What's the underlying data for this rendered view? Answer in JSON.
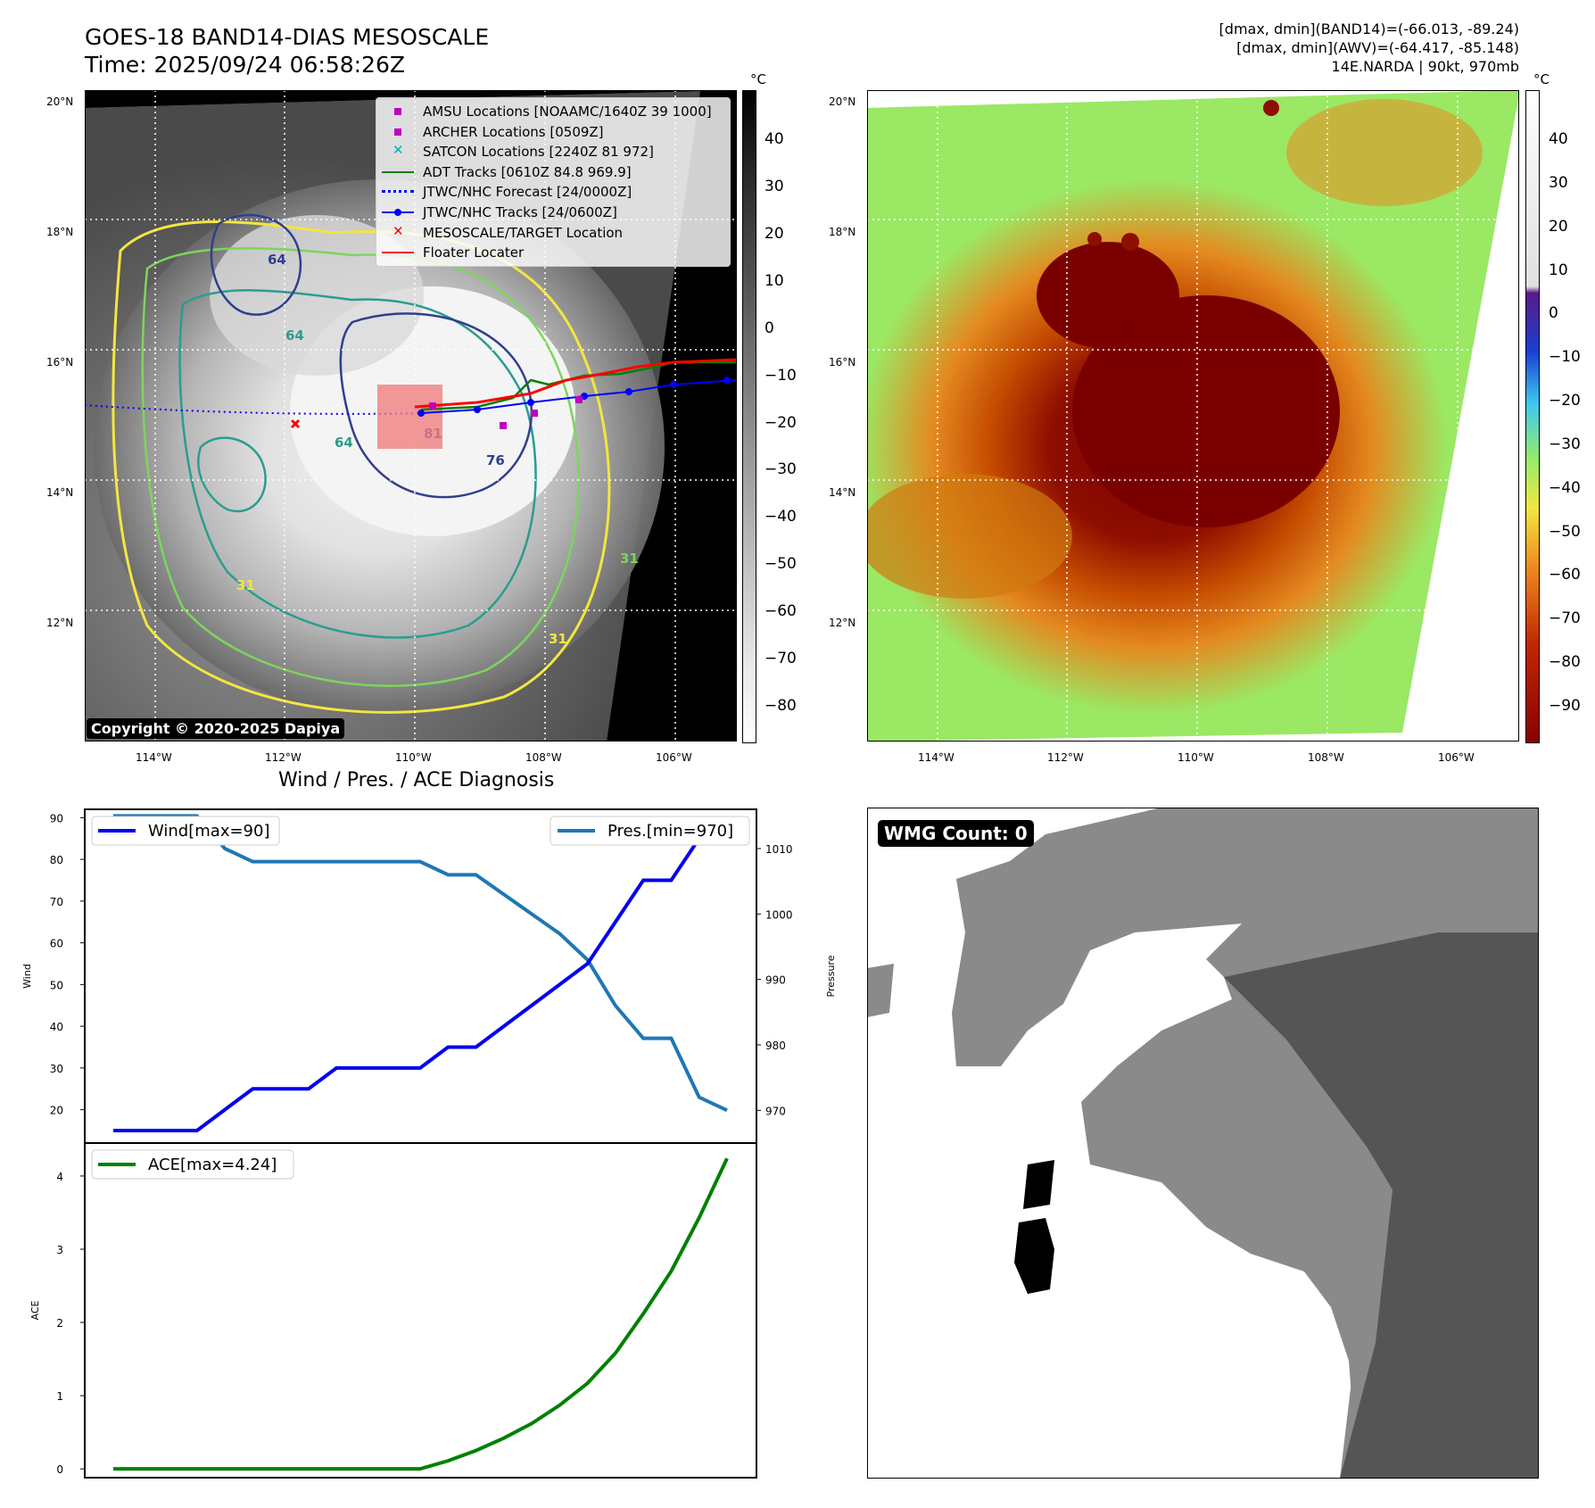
{
  "header": {
    "title_line1": "GOES-18 BAND14-DIAS MESOSCALE",
    "title_line2": "Time: 2025/09/24 06:58:26Z",
    "info_line1": "[dmax, dmin](BAND14)=(-66.013, -89.24)",
    "info_line2": "[dmax, dmin](AWV)=(-64.417, -85.148)",
    "info_line3": "14E.NARDA | 90kt, 970mb"
  },
  "maps": {
    "lat_ticks": [
      "20°N",
      "18°N",
      "16°N",
      "14°N",
      "12°N"
    ],
    "lon_ticks": [
      "114°W",
      "112°W",
      "110°W",
      "108°W",
      "106°W"
    ],
    "unit": "°C",
    "left_colorbar_ticks": [
      "40",
      "30",
      "20",
      "10",
      "0",
      "−10",
      "−20",
      "−30",
      "−40",
      "−50",
      "−60",
      "−70",
      "−80"
    ],
    "right_colorbar_ticks": [
      "40",
      "30",
      "20",
      "10",
      "0",
      "−10",
      "−20",
      "−30",
      "−40",
      "−50",
      "−60",
      "−70",
      "−80",
      "−90"
    ],
    "copyright": "Copyright © 2020-2025 Dapiya",
    "contour_labels": [
      "64",
      "64",
      "81",
      "76",
      "64",
      "31",
      "31",
      "31"
    ],
    "legend": [
      {
        "label": "AMSU Locations [NOAAMC/1640Z 39 1000]",
        "color": "#c000c0",
        "marker": "square"
      },
      {
        "label": "ARCHER Locations [0509Z]",
        "color": "#c000c0",
        "marker": "square"
      },
      {
        "label": "SATCON Locations [2240Z 81 972]",
        "color": "#00b0b0",
        "marker": "x"
      },
      {
        "label": "ADT Tracks [0610Z 84.8 969.9]",
        "color": "#008000",
        "marker": "line"
      },
      {
        "label": "JTWC/NHC Forecast [24/0000Z]",
        "color": "#0000ff",
        "marker": "dotted"
      },
      {
        "label": "JTWC/NHC Tracks [24/0600Z]",
        "color": "#0000ff",
        "marker": "line-dot"
      },
      {
        "label": "MESOSCALE/TARGET Location",
        "color": "#ff0000",
        "marker": "x"
      },
      {
        "label": "Floater Locater",
        "color": "#ff0000",
        "marker": "line"
      }
    ]
  },
  "wmg": {
    "label": "WMG Count: 0"
  },
  "diagnosis": {
    "title": "Wind / Pres. / ACE Diagnosis"
  },
  "chart_data": [
    {
      "type": "line",
      "title": "Wind / Pres. / ACE Diagnosis",
      "ylabel": "Wind",
      "y2label": "Pressure",
      "ylim": [
        12,
        92
      ],
      "y2lim": [
        965,
        1016
      ],
      "yticks": [
        20,
        30,
        40,
        50,
        60,
        70,
        80,
        90
      ],
      "y2ticks": [
        970,
        980,
        990,
        1000,
        1010
      ],
      "series": [
        {
          "name": "Wind[max=90]",
          "axis": "left",
          "color": "#0000ee",
          "values": [
            15,
            15,
            15,
            15,
            20,
            25,
            25,
            25,
            30,
            30,
            30,
            30,
            35,
            35,
            40,
            45,
            50,
            55,
            65,
            75,
            75,
            85,
            90
          ]
        },
        {
          "name": "Pres.[min=970]",
          "axis": "right",
          "color": "#1f77b4",
          "values": [
            1015,
            1015,
            1015,
            1015,
            1010,
            1008,
            1008,
            1008,
            1008,
            1008,
            1008,
            1008,
            1006,
            1006,
            1003,
            1000,
            997,
            993,
            986,
            981,
            981,
            972,
            970
          ]
        }
      ]
    },
    {
      "type": "line",
      "ylabel": "ACE",
      "ylim": [
        -0.12,
        4.45
      ],
      "yticks": [
        0,
        1,
        2,
        3,
        4
      ],
      "series": [
        {
          "name": "ACE[max=4.24]",
          "color": "#008000",
          "values": [
            0,
            0,
            0,
            0,
            0,
            0,
            0,
            0,
            0,
            0,
            0,
            0,
            0.11,
            0.25,
            0.42,
            0.62,
            0.87,
            1.17,
            1.58,
            2.12,
            2.7,
            3.43,
            4.24
          ]
        }
      ]
    }
  ]
}
